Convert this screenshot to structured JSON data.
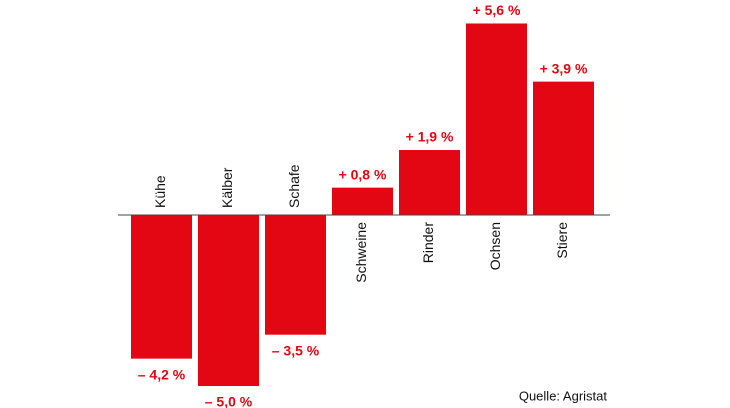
{
  "chart_data": {
    "type": "bar",
    "categories": [
      "Kühe",
      "Kälber",
      "Schafe",
      "Schweine",
      "Rinder",
      "Ochsen",
      "Stiere"
    ],
    "values": [
      -4.2,
      -5.0,
      -3.5,
      0.8,
      1.9,
      5.6,
      3.9
    ],
    "value_labels": [
      "– 4,2 %",
      "– 5,0 %",
      "– 3,5 %",
      "+ 0,8 %",
      "+ 1,9 %",
      "+ 5,6 %",
      "+ 3,9 %"
    ],
    "color": "#e30613",
    "source": "Quelle: Agristat"
  }
}
